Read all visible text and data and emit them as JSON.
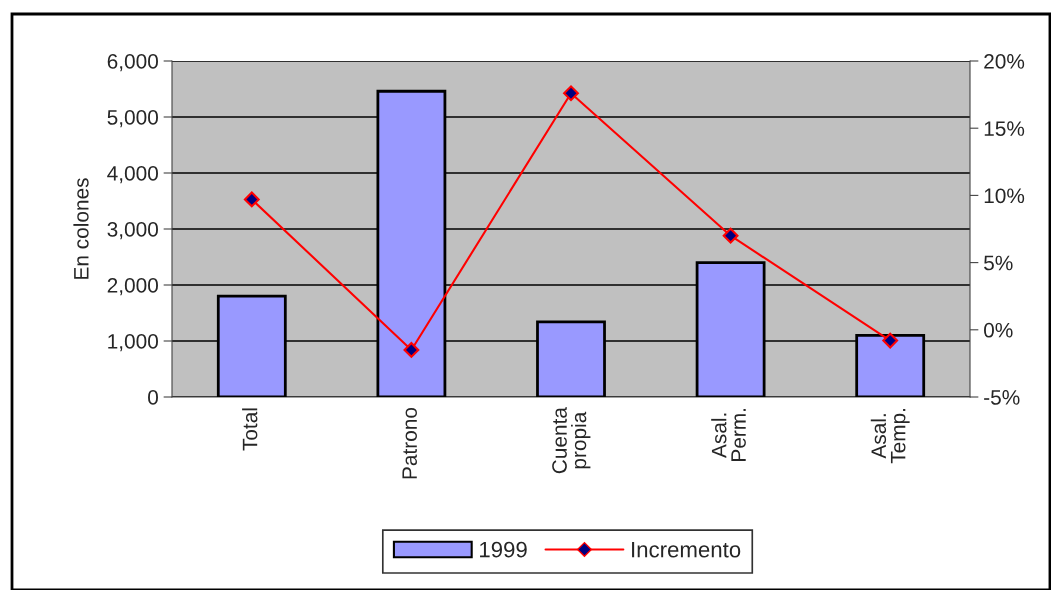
{
  "chart_data": {
    "type": "bar",
    "categories": [
      "Total",
      "Patrono",
      "Cuenta\npropia",
      "Asal.\nPerm.",
      "Asal.\nTemp."
    ],
    "ylabel": "En colones",
    "series": [
      {
        "name": "1999",
        "color": "#9999ff",
        "values": [
          1800,
          5460,
          1340,
          2400,
          1100
        ]
      },
      {
        "name": "Incremento",
        "type": "line",
        "axis": "y2",
        "color": "#ff0000",
        "marker": "diamond",
        "values": [
          9.7,
          -1.5,
          17.6,
          7.0,
          -0.8
        ]
      }
    ],
    "ylim": [
      0,
      6000
    ],
    "yticks": [
      0,
      {
        "value": 1000,
        "label": "1,000"
      },
      {
        "value": 2000,
        "label": "2,000"
      },
      {
        "value": 3000,
        "label": "3,000"
      },
      {
        "value": 4000,
        "label": "4,000"
      },
      {
        "value": 5000,
        "label": "5,000"
      },
      {
        "value": 6000,
        "label": "6,000"
      }
    ],
    "y2lim": [
      -5,
      20
    ],
    "y2ticks": [
      {
        "value": -5,
        "label": "-5%"
      },
      {
        "value": 0,
        "label": "0%"
      },
      {
        "value": 5,
        "label": "5%"
      },
      {
        "value": 10,
        "label": "10%"
      },
      {
        "value": 15,
        "label": "15%"
      },
      {
        "value": 20,
        "label": "20%"
      }
    ],
    "grid": "y",
    "legend": "bottom"
  }
}
